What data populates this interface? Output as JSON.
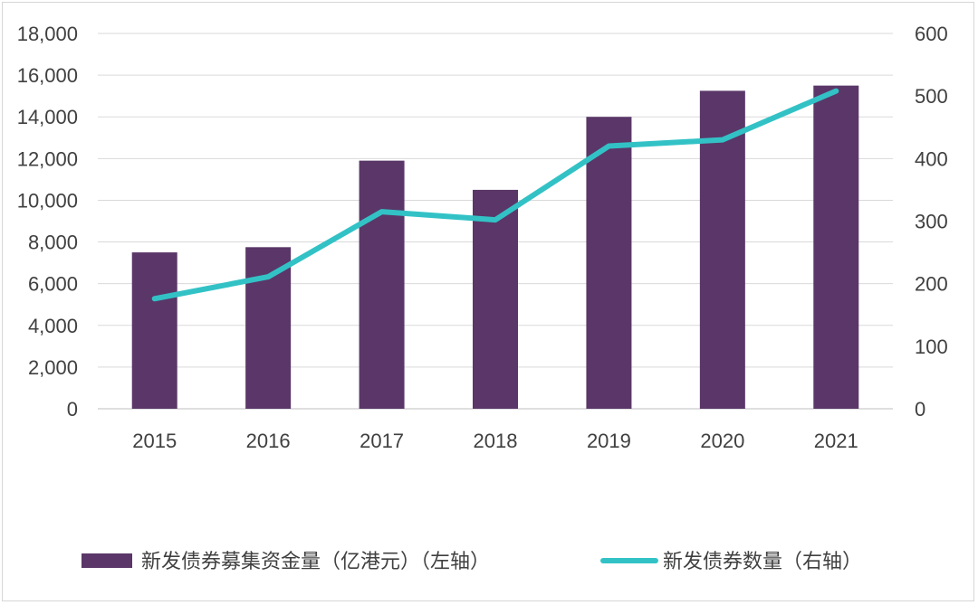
{
  "chart_data": {
    "type": "bar",
    "categories": [
      "2015",
      "2016",
      "2017",
      "2018",
      "2019",
      "2020",
      "2021"
    ],
    "series": [
      {
        "name": "新发债券募集资金量（亿港元）（左轴）",
        "type": "bar",
        "axis": "left",
        "color": "#5a3768",
        "values": [
          7500,
          7750,
          11900,
          10500,
          14000,
          15250,
          15500
        ]
      },
      {
        "name": "新发债券数量（右轴）",
        "type": "line",
        "axis": "right",
        "color": "#32c2c6",
        "values": [
          176,
          211,
          315,
          302,
          420,
          430,
          508
        ]
      }
    ],
    "left_axis": {
      "ylim": [
        0,
        18000
      ],
      "ticks": [
        0,
        2000,
        4000,
        6000,
        8000,
        10000,
        12000,
        14000,
        16000,
        18000
      ],
      "tick_labels": [
        "0",
        "2,000",
        "4,000",
        "6,000",
        "8,000",
        "10,000",
        "12,000",
        "14,000",
        "16,000",
        "18,000"
      ]
    },
    "right_axis": {
      "ylim": [
        0,
        600
      ],
      "ticks": [
        0,
        100,
        200,
        300,
        400,
        500,
        600
      ],
      "tick_labels": [
        "0",
        "100",
        "200",
        "300",
        "400",
        "500",
        "600"
      ]
    },
    "grid": true,
    "legend_position": "bottom"
  }
}
